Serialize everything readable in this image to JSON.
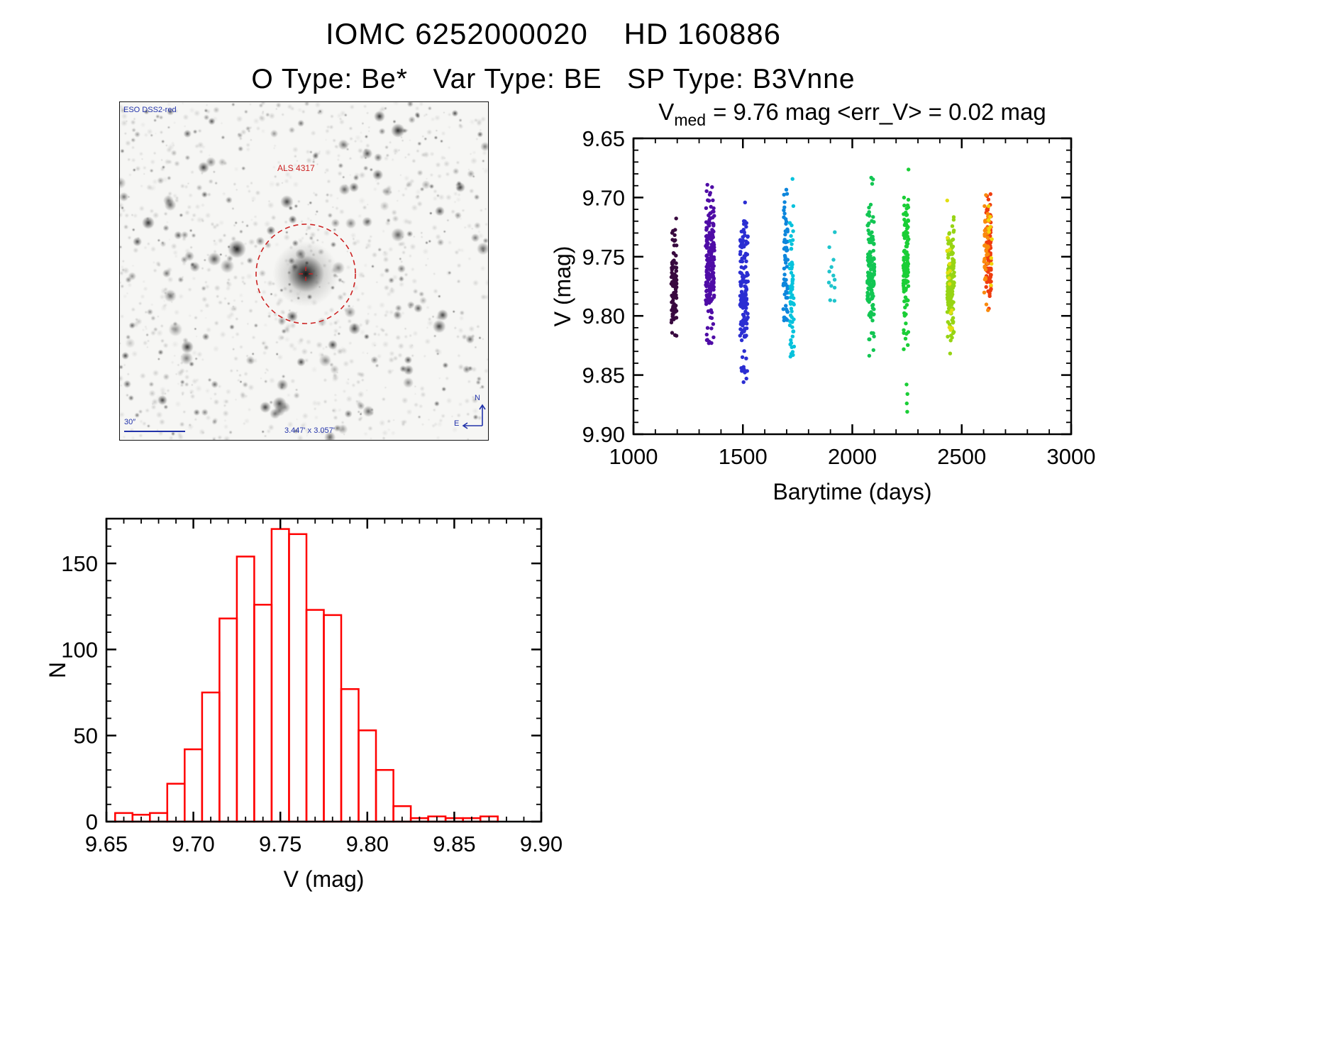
{
  "header": {
    "title": "IOMC 6252000020    HD 160886",
    "subtitle": "O Type: Be*   Var Type: BE   SP Type: B3Vnne"
  },
  "starfield": {
    "survey_label": "ESO DSS2-red",
    "target_label": "ALS 4317",
    "scale_label": "30″",
    "fov_label": "3.447' x 3.057'",
    "compass_north": "N",
    "compass_east": "E",
    "annotation_color": "#2233aa",
    "marker_color": "#cc2222"
  },
  "chart_data": [
    {
      "type": "scatter",
      "name": "lightcurve",
      "title_parts": {
        "base": "V",
        "sub": "med",
        "rest": "= 9.76 mag  <err_V> = 0.02 mag"
      },
      "xlabel": "Barytime (days)",
      "ylabel": "V (mag)",
      "xlim": [
        1000,
        3000
      ],
      "ylim_top": 9.65,
      "ylim_bottom": 9.9,
      "xticks": [
        1000,
        1500,
        2000,
        2500,
        3000
      ],
      "yticks": [
        9.65,
        9.7,
        9.75,
        9.8,
        9.85,
        9.9
      ],
      "x_minor_step": 100,
      "y_minor_step": 0.01,
      "x_decimals": 0,
      "y_decimals": 2,
      "axis_color": "#000000",
      "point_radius": 2.7,
      "clusters": [
        {
          "t": 1185,
          "dt": 12,
          "n": 90,
          "v": 9.772,
          "s": 0.024,
          "vmin": 9.712,
          "vmax": 9.832,
          "color": "#38093f"
        },
        {
          "t": 1350,
          "dt": 20,
          "n": 200,
          "v": 9.756,
          "s": 0.028,
          "vmin": 9.664,
          "vmax": 9.824,
          "color": "#4f0ca6"
        },
        {
          "t": 1505,
          "dt": 18,
          "n": 150,
          "v": 9.776,
          "s": 0.03,
          "vmin": 9.688,
          "vmax": 9.848,
          "color": "#2b2ed2"
        },
        {
          "t": 1695,
          "dt": 10,
          "n": 60,
          "v": 9.752,
          "s": 0.036,
          "vmin": 9.65,
          "vmax": 9.804,
          "color": "#0d86dc"
        },
        {
          "t": 1724,
          "dt": 10,
          "n": 62,
          "v": 9.778,
          "s": 0.036,
          "vmin": 9.652,
          "vmax": 9.836,
          "color": "#07c2dc"
        },
        {
          "t": 1905,
          "dt": 15,
          "n": 12,
          "v": 9.757,
          "s": 0.022,
          "vmin": 9.714,
          "vmax": 9.798,
          "color": "#1fc4cc"
        },
        {
          "t": 2085,
          "dt": 16,
          "n": 130,
          "v": 9.765,
          "s": 0.03,
          "vmin": 9.676,
          "vmax": 9.834,
          "color": "#12c653"
        },
        {
          "t": 2245,
          "dt": 12,
          "n": 110,
          "v": 9.752,
          "s": 0.034,
          "vmin": 9.65,
          "vmax": 9.83,
          "color": "#1ace36"
        },
        {
          "t": 2450,
          "dt": 16,
          "n": 160,
          "v": 9.77,
          "s": 0.025,
          "vmin": 9.69,
          "vmax": 9.834,
          "color": "#97d413"
        },
        {
          "t": 2446,
          "dt": 14,
          "n": 15,
          "v": 9.762,
          "s": 0.03,
          "vmin": 9.7,
          "vmax": 9.812,
          "color": "#e2df11"
        },
        {
          "t": 2622,
          "dt": 12,
          "n": 110,
          "v": 9.746,
          "s": 0.02,
          "vmin": 9.682,
          "vmax": 9.802,
          "color": "#ef3d0f"
        },
        {
          "t": 2614,
          "dt": 12,
          "n": 40,
          "v": 9.74,
          "s": 0.022,
          "vmin": 9.688,
          "vmax": 9.8,
          "color": "#fa8a0c"
        },
        {
          "t": 2630,
          "dt": 8,
          "n": 10,
          "v": 9.732,
          "s": 0.02,
          "vmin": 9.7,
          "vmax": 9.808,
          "color": "#f1d40b"
        }
      ],
      "outliers": [
        {
          "t": 2248,
          "v": 9.858,
          "color": "#1ace36"
        },
        {
          "t": 2252,
          "v": 9.866,
          "color": "#1ace36"
        },
        {
          "t": 2249,
          "v": 9.874,
          "color": "#1ace36"
        },
        {
          "t": 2251,
          "v": 9.881,
          "color": "#1ace36"
        },
        {
          "t": 1516,
          "v": 9.853,
          "color": "#2b2ed2"
        },
        {
          "t": 1503,
          "v": 9.856,
          "color": "#2b2ed2"
        }
      ]
    },
    {
      "type": "bar",
      "name": "v-histogram",
      "xlabel": "V (mag)",
      "ylabel": "N",
      "xlim": [
        9.65,
        9.9
      ],
      "ylim": [
        0,
        176
      ],
      "xticks": [
        9.65,
        9.7,
        9.75,
        9.8,
        9.85,
        9.9
      ],
      "yticks": [
        0,
        50,
        100,
        150
      ],
      "x_minor_step": 0.01,
      "y_minor_step": 10,
      "x_decimals": 2,
      "y_decimals": 0,
      "bar_color": "#ff0000",
      "bin_start": 9.655,
      "bin_width": 0.01,
      "values": [
        5,
        4,
        5,
        22,
        42,
        75,
        118,
        154,
        126,
        170,
        167,
        123,
        120,
        77,
        53,
        30,
        9,
        2,
        3,
        2,
        2,
        3
      ]
    }
  ]
}
